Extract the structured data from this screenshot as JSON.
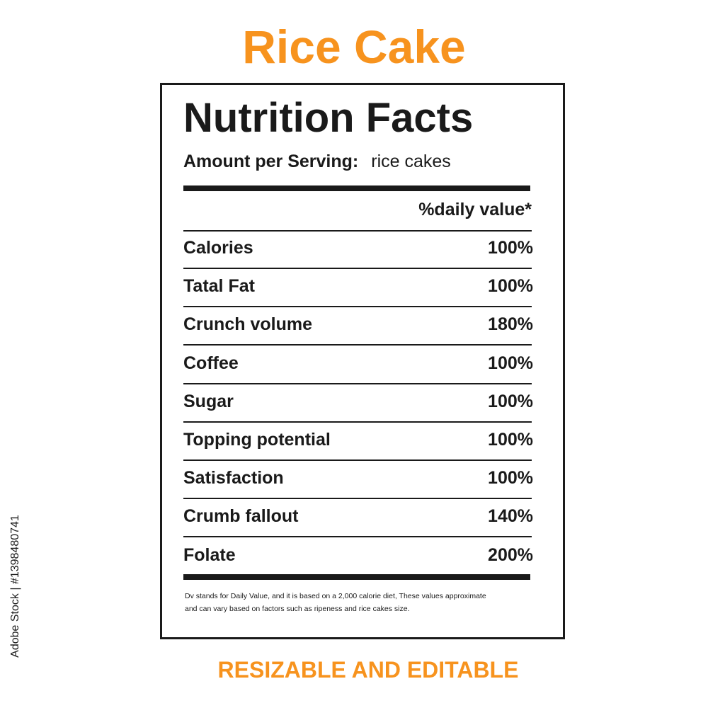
{
  "page_title": "Rice Cake",
  "label": {
    "heading": "Nutrition Facts",
    "serving_label": "Amount per Serving:",
    "serving_value": "rice cakes",
    "dv_header": "%daily value*",
    "rows": [
      [
        "Calories",
        "100%"
      ],
      [
        "Tatal Fat",
        "100%"
      ],
      [
        "Crunch volume",
        "180%"
      ],
      [
        "Coffee",
        "100%"
      ],
      [
        "Sugar",
        "100%"
      ],
      [
        "Topping potential",
        "100%"
      ],
      [
        "Satisfaction",
        "100%"
      ],
      [
        "Crumb fallout",
        "140%"
      ],
      [
        "Folate",
        "200%"
      ]
    ],
    "footnote": [
      "Dv stands for Daily Value, and it is based on a 2,000 calorie diet, These values approximate",
      "and can vary based on factors such as ripeness and rice cakes size."
    ]
  },
  "tagline": "RESIZABLE AND EDITABLE",
  "watermark": "Adobe Stock | #1398480741"
}
